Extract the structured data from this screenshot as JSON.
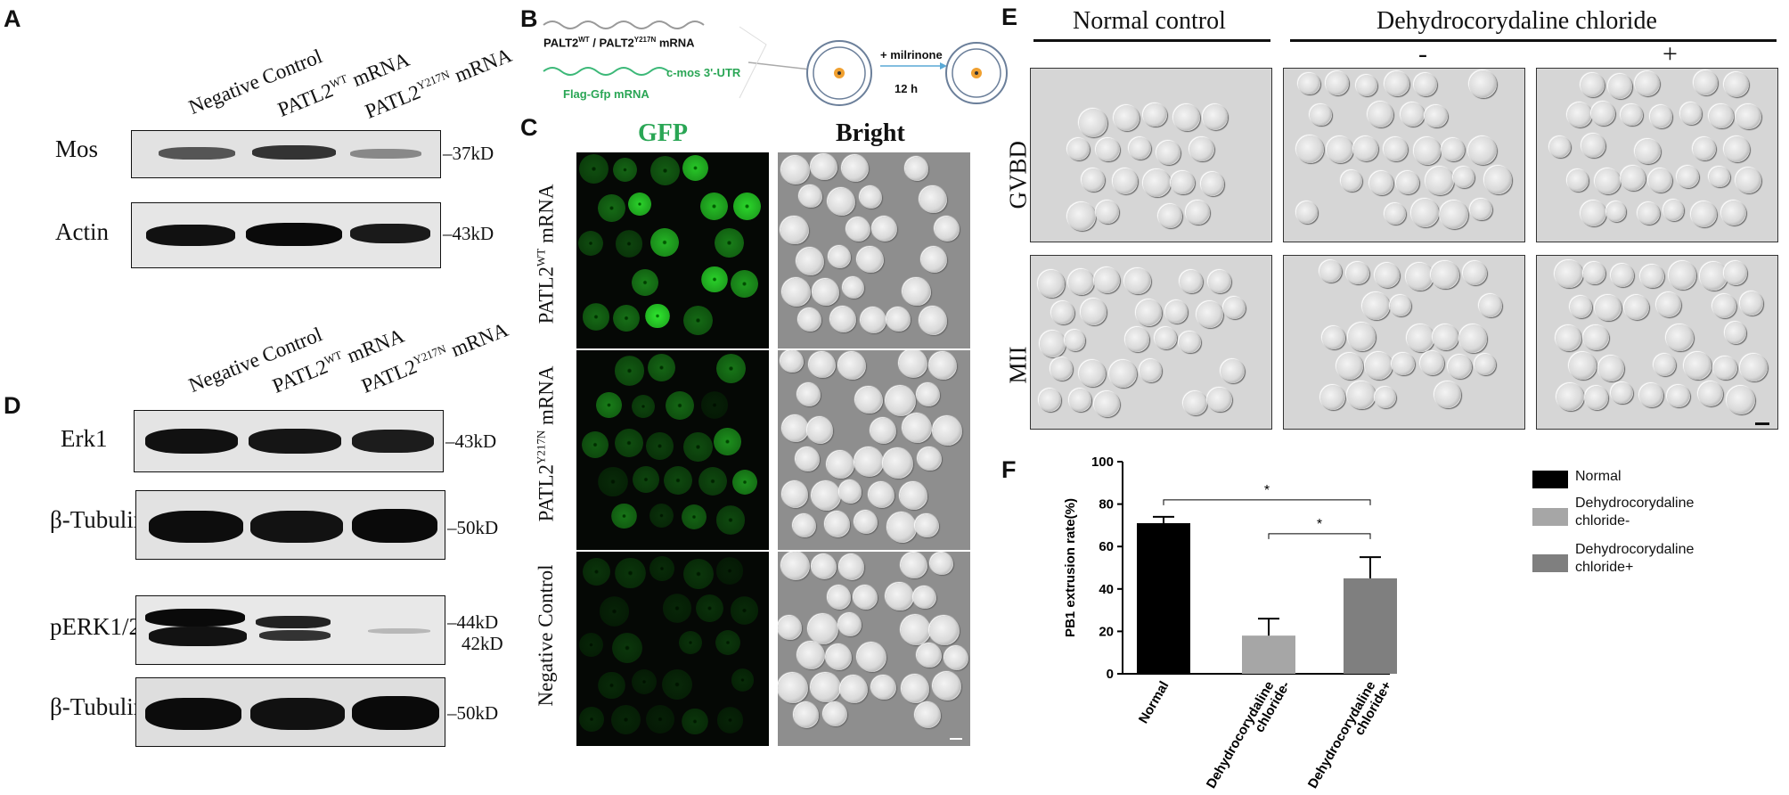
{
  "panelA": {
    "letter": "A",
    "lanes": [
      "Negative Control",
      "PATL2",
      "PATL2"
    ],
    "lane_sup": [
      "",
      "WT",
      "Y217N"
    ],
    "lane_suffix": [
      "",
      " mRNA",
      " mRNA"
    ],
    "rows": [
      {
        "label": "Mos",
        "mw": "37kD"
      },
      {
        "label": "Actin",
        "mw": "43kD"
      }
    ]
  },
  "panelD": {
    "letter": "D",
    "lanes": [
      "Negative Control",
      "PATL2",
      "PATL2"
    ],
    "lane_sup": [
      "",
      "WT",
      "Y217N"
    ],
    "lane_suffix": [
      "",
      " mRNA",
      " mRNA"
    ],
    "rows": [
      {
        "label": "Erk1",
        "mw": "43kD"
      },
      {
        "label": "β-Tubulin",
        "mw": "50kD"
      },
      {
        "label": "pERK1/2",
        "mw": "44kD",
        "mw2": "42kD"
      },
      {
        "label": "β-Tubulin",
        "mw": "50kD"
      }
    ]
  },
  "panelB": {
    "letter": "B",
    "mrna1": "PALT2",
    "mrna1_sup1": "WT",
    "mrna1_mid": " / PALT2",
    "mrna1_sup2": "Y217N",
    "mrna1_end": " mRNA",
    "mrna2": "Flag-Gfp mRNA",
    "utr": "c-mos 3'-UTR",
    "treatment": "+ milrinone",
    "duration": "12 h"
  },
  "panelC": {
    "letter": "C",
    "col_gfp": "GFP",
    "col_bright": "Bright",
    "rows": [
      {
        "label": "PATL2",
        "sup": "WT",
        "suffix": " mRNA"
      },
      {
        "label": "PATL2",
        "sup": "Y217N",
        "suffix": " mRNA"
      },
      {
        "label": "Negative Control",
        "sup": "",
        "suffix": ""
      }
    ]
  },
  "panelE": {
    "letter": "E",
    "group1": "Normal control",
    "group2": "Dehydrocorydaline chloride",
    "minus": "-",
    "plus": "+",
    "rows": [
      "GVBD",
      "MII"
    ]
  },
  "panelF": {
    "letter": "F",
    "colors": {
      "Normal": "#000000",
      "Dehydrocorydaline chloride-": "#a6a6a6",
      "Dehydrocorydaline chloride+": "#7f7f7f"
    },
    "legend": [
      {
        "lines": [
          "Normal"
        ],
        "color": "#000000"
      },
      {
        "lines": [
          "Dehydrocorydaline",
          "chloride-"
        ],
        "color": "#a6a6a6"
      },
      {
        "lines": [
          "Dehydrocorydaline",
          "chloride+"
        ],
        "color": "#7f7f7f"
      }
    ],
    "sig1": "*",
    "sig2": "*"
  },
  "chart_data": {
    "type": "bar",
    "categories": [
      "Normal",
      "Dehydrocorydaline chloride-",
      "Dehydrocorydaline chloride+"
    ],
    "category_lines": [
      [
        "Normal"
      ],
      [
        "Dehydrocorydaline",
        "chloride-"
      ],
      [
        "Dehydrocorydaline",
        "chloride+"
      ]
    ],
    "values": [
      71,
      18,
      45
    ],
    "errors": [
      3,
      8,
      10
    ],
    "ylabel": "PB1 extrusion rate(%)",
    "ylim": [
      0,
      100
    ],
    "yticks": [
      0,
      20,
      40,
      60,
      80,
      100
    ],
    "legend_position": "right"
  }
}
